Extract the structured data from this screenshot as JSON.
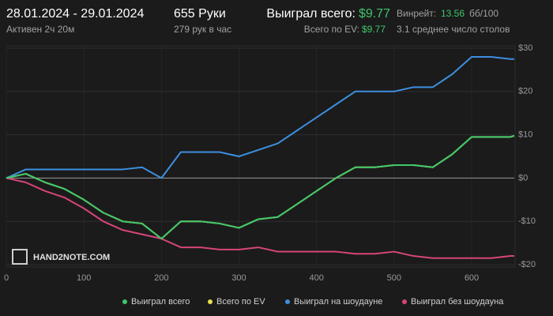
{
  "header": {
    "date_range": "28.01.2024 - 29.01.2024",
    "active": "Активен 2ч 20м",
    "hands": "655 Руки",
    "hands_per_hour": "279 рук в час",
    "won_label": "Выиграл всего:",
    "won_value": "$9.77",
    "winrate_label": "Винрейт:",
    "winrate_value": "13.56",
    "winrate_unit": "бб/100",
    "ev_label": "Всего по EV:",
    "ev_value": "$9.77",
    "tables": "3.1 среднее число столов",
    "logo": "HAND2NOTE.COM"
  },
  "chart_data": {
    "type": "line",
    "x": [
      0,
      25,
      50,
      75,
      100,
      125,
      150,
      175,
      200,
      225,
      250,
      275,
      300,
      325,
      350,
      375,
      400,
      425,
      450,
      475,
      500,
      525,
      550,
      575,
      600,
      625,
      650,
      655
    ],
    "series": [
      {
        "name": "Всего по EV",
        "color": "#e8e04a",
        "values": [
          0,
          1,
          -1,
          -2.5,
          -5,
          -8,
          -10,
          -10.5,
          -14,
          -10,
          -10,
          -10.5,
          -11.5,
          -9.5,
          -9,
          -6,
          -3,
          0,
          2.5,
          2.5,
          3,
          3,
          2.5,
          5.5,
          9.5,
          9.5,
          9.5,
          9.77
        ]
      },
      {
        "name": "Выиграл на шоудауне",
        "color": "#3d8fe0",
        "values": [
          0,
          2,
          2,
          2,
          2,
          2,
          2,
          2.5,
          0,
          6,
          6,
          6,
          5,
          6.5,
          8,
          11,
          14,
          17,
          20,
          20,
          20,
          21,
          21,
          24,
          28,
          28,
          27.5,
          27.5
        ]
      },
      {
        "name": "Выиграл без шоудауна",
        "color": "#d6457a",
        "values": [
          0,
          -1,
          -3,
          -4.5,
          -7,
          -10,
          -12,
          -13,
          -14,
          -16,
          -16,
          -16.5,
          -16.5,
          -16,
          -17,
          -17,
          -17,
          -17,
          -17.5,
          -17.5,
          -17,
          -18,
          -18.5,
          -18.5,
          -18.5,
          -18.5,
          -18,
          -18
        ]
      },
      {
        "name": "Выиграл всего",
        "color": "#3fc76b",
        "values": [
          0,
          1,
          -1,
          -2.5,
          -5,
          -8,
          -10,
          -10.5,
          -14,
          -10,
          -10,
          -10.5,
          -11.5,
          -9.5,
          -9,
          -6,
          -3,
          0,
          2.5,
          2.5,
          3,
          3,
          2.5,
          5.5,
          9.5,
          9.5,
          9.5,
          9.77
        ]
      }
    ],
    "legend_order": [
      3,
      0,
      1,
      2
    ],
    "xlim": [
      0,
      655
    ],
    "xticks": [
      0,
      100,
      200,
      300,
      400,
      500,
      600
    ],
    "ylim": [
      -20,
      30
    ],
    "yticks": [
      {
        "value": 30,
        "label": "$30"
      },
      {
        "value": 20,
        "label": "$20"
      },
      {
        "value": 10,
        "label": "$10"
      },
      {
        "value": 0,
        "label": "$0"
      },
      {
        "value": -10,
        "label": "-$10"
      },
      {
        "value": -20,
        "label": "-$20"
      }
    ],
    "grid": true
  }
}
